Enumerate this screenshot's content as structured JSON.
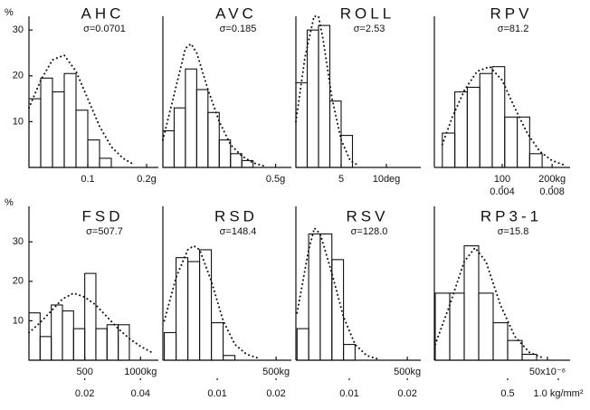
{
  "chart_data": [
    {
      "type": "histogram",
      "title": "AHC",
      "annotation": "σ=0.0701",
      "ylabel": "%",
      "bins": [
        0,
        0.02,
        0.04,
        0.06,
        0.08,
        0.1,
        0.12,
        0.14
      ],
      "counts": [
        15,
        19.5,
        16.5,
        20.5,
        12.5,
        6,
        2
      ],
      "curve": {
        "x": [
          0,
          0.02,
          0.04,
          0.06,
          0.08,
          0.1,
          0.12,
          0.14,
          0.16,
          0.18
        ],
        "y": [
          13,
          19,
          23.5,
          24.5,
          21,
          15,
          9,
          4.5,
          2,
          0.5
        ]
      },
      "xlim": [
        0,
        0.22
      ],
      "xticks": [
        0.1,
        {
          "value": 0.2,
          "label": "0.2g"
        }
      ],
      "ylim": [
        0,
        33
      ],
      "yticks": [
        10,
        20,
        30
      ]
    },
    {
      "type": "histogram",
      "title": "AVC",
      "annotation": "σ=0.185",
      "bins": [
        0,
        0.05,
        0.1,
        0.15,
        0.2,
        0.25,
        0.3,
        0.35,
        0.4
      ],
      "counts": [
        8,
        13,
        21.5,
        17,
        12,
        6,
        3,
        1.5
      ],
      "curve": {
        "x": [
          0,
          0.05,
          0.1,
          0.125,
          0.15,
          0.2,
          0.25,
          0.3,
          0.35,
          0.4,
          0.45
        ],
        "y": [
          6,
          16,
          26,
          27,
          25,
          17,
          10,
          5,
          2.5,
          1,
          0.3
        ]
      },
      "xlim": [
        0,
        0.57
      ],
      "xticks": [
        {
          "value": 0.5,
          "label": "0.5g"
        }
      ],
      "ylim": [
        0,
        33
      ]
    },
    {
      "type": "histogram",
      "title": "ROLL",
      "annotation": "σ=2.53",
      "bins": [
        0,
        1.25,
        2.5,
        3.75,
        5,
        6.25
      ],
      "counts": [
        18.5,
        30,
        31,
        14.5,
        7
      ],
      "curve": {
        "x": [
          0,
          1,
          2,
          2.5,
          3,
          4,
          5,
          6,
          7
        ],
        "y": [
          10,
          24,
          33,
          33,
          28,
          15,
          6,
          1.5,
          0.3
        ]
      },
      "xlim": [
        0,
        13.8
      ],
      "xticks": [
        5,
        {
          "value": 10,
          "label": "10deg"
        }
      ],
      "ylim": [
        0,
        33
      ]
    },
    {
      "type": "histogram",
      "title": "RPV",
      "annotation": "σ=81.2",
      "bins": [
        -20,
        5,
        30,
        55,
        80,
        105,
        130,
        155,
        180
      ],
      "counts": [
        7.5,
        16.5,
        17.5,
        20.5,
        22,
        11,
        11,
        3
      ],
      "curve": {
        "x": [
          -20,
          0,
          25,
          50,
          75,
          100,
          125,
          150,
          175,
          200,
          225
        ],
        "y": [
          5,
          11,
          17,
          21,
          22,
          19,
          13,
          7.5,
          3.5,
          1.5,
          0.5
        ]
      },
      "xlim": [
        -36,
        236
      ],
      "xticks": [
        100,
        {
          "value": 200,
          "label": "200kg"
        }
      ],
      "x2lim": [
        -0.00144,
        0.00944
      ],
      "x2ticks": [
        0.004,
        0.008
      ],
      "ylim": [
        0,
        33
      ]
    },
    {
      "type": "histogram",
      "title": "FSD",
      "annotation": "σ=507.7",
      "ylabel": "%",
      "bins": [
        0,
        100,
        200,
        300,
        400,
        500,
        600,
        700,
        800,
        900
      ],
      "counts": [
        12,
        6,
        14,
        12.5,
        8,
        22,
        8,
        9,
        9
      ],
      "curve": {
        "x": [
          0,
          100,
          200,
          300,
          400,
          500,
          600,
          700,
          800,
          900,
          1000,
          1100
        ],
        "y": [
          7,
          9.5,
          12.5,
          15.5,
          17,
          16,
          14,
          11,
          8,
          5.5,
          3.5,
          2
        ]
      },
      "xlim": [
        0,
        1160
      ],
      "xticks": [
        500,
        {
          "value": 1000,
          "label": "1000kg"
        }
      ],
      "x2lim": [
        0,
        0.0464
      ],
      "x2ticks": [
        0.02,
        0.04
      ],
      "ylim": [
        0,
        39
      ],
      "yticks": [
        10,
        20,
        30
      ]
    },
    {
      "type": "histogram",
      "title": "RSD",
      "annotation": "σ=148.4",
      "bins": [
        25,
        75,
        125,
        175,
        225,
        275,
        325
      ],
      "counts": [
        7,
        26,
        25,
        28,
        9.5,
        1.2
      ],
      "curve": {
        "x": [
          25,
          75,
          125,
          150,
          175,
          225,
          275,
          325,
          375,
          425
        ],
        "y": [
          10,
          21,
          28,
          29,
          28,
          20,
          10,
          4,
          1.5,
          0.5
        ]
      },
      "xlim": [
        19,
        565
      ],
      "xticks": [
        {
          "value": 500,
          "label": "500kg"
        }
      ],
      "x2lim": [
        0.00076,
        0.0226
      ],
      "x2ticks": [
        0.01,
        0.02
      ],
      "ylim": [
        0,
        39
      ]
    },
    {
      "type": "histogram",
      "title": "RSV",
      "annotation": "σ=128.0",
      "bins": [
        25,
        75,
        125,
        175,
        225,
        275
      ],
      "counts": [
        8,
        32,
        32,
        25.5,
        4
      ],
      "curve": {
        "x": [
          25,
          75,
          100,
          125,
          175,
          225,
          275,
          325,
          375
        ],
        "y": [
          12,
          28,
          33.5,
          32,
          22,
          11,
          4,
          1.2,
          0.3
        ]
      },
      "xlim": [
        20,
        558
      ],
      "xticks": [
        {
          "value": 500,
          "label": "500kg"
        }
      ],
      "x2lim": [
        0.0008,
        0.02232
      ],
      "x2ticks": [
        0.01,
        0.02
      ],
      "ylim": [
        0,
        39
      ]
    },
    {
      "type": "histogram",
      "title": "RP3-1",
      "annotation": "σ=15.8",
      "bins": [
        -12,
        -4,
        4,
        12,
        20,
        28,
        36,
        44
      ],
      "counts": [
        17,
        17,
        29,
        17,
        9.5,
        5,
        1.5
      ],
      "curve": {
        "x": [
          -12,
          -4,
          4,
          10,
          16,
          24,
          32,
          40,
          48
        ],
        "y": [
          4,
          14,
          25,
          28.5,
          25,
          14,
          6,
          2,
          0.5
        ]
      },
      "xlim": [
        -12.5,
        62.5
      ],
      "xticks": [
        {
          "value": 50,
          "label": "50x10⁻⁶"
        }
      ],
      "x2lim": [
        -0.223,
        1.116
      ],
      "x2ticks": [
        0.5,
        {
          "value": 1.0,
          "label": "1.0 kg/mm²"
        }
      ],
      "ylim": [
        0,
        39
      ]
    }
  ]
}
